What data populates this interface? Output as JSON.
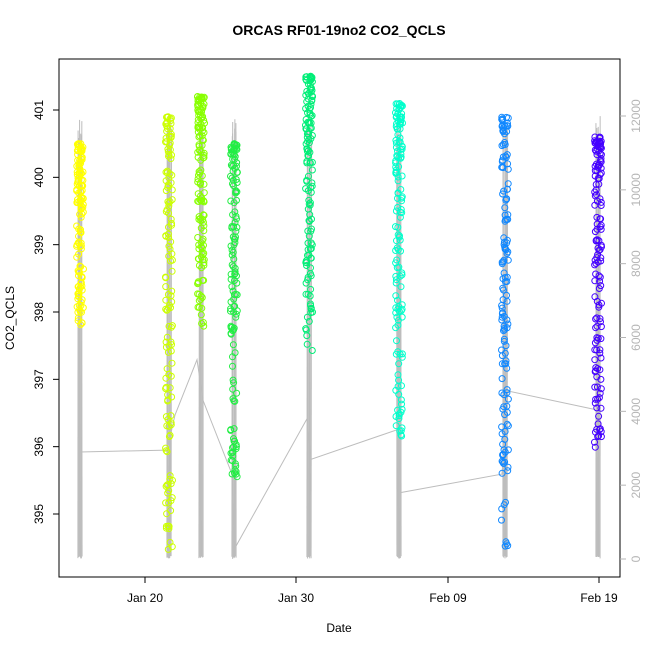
{
  "chart_data": {
    "type": "scatter",
    "title": "ORCAS RF01-19no2 CO2_QCLS",
    "xlabel": "Date",
    "ylabel": "CO2_QCLS",
    "x_ticks": [
      "Jan 20",
      "Jan 30",
      "Feb 09",
      "Feb 19"
    ],
    "y_ticks": [
      "395",
      "396",
      "397",
      "398",
      "399",
      "400",
      "401"
    ],
    "y_right_ticks": [
      "0",
      "2000",
      "4000",
      "6000",
      "8000",
      "10000",
      "12000"
    ],
    "x_range_days_after_jan20": [
      -5.8,
      19.5
    ],
    "ylim": [
      394.1,
      401.6
    ],
    "y_right_lim": [
      -400,
      13200
    ],
    "grid": false,
    "colors": {
      "altitude_trace": "#bdbdbd",
      "axes": "#000000",
      "right_axis": "#b5b5b5"
    },
    "flights": [
      {
        "date": "Jan 15",
        "day": -4.3,
        "color": "#ffff00",
        "co2_min": 397.8,
        "co2_max": 400.5,
        "alt_min": 0,
        "alt_max": 12000
      },
      {
        "date": "Jan 21",
        "day": 1.6,
        "color": "#ccff00",
        "co2_min": 394.4,
        "co2_max": 400.9,
        "alt_min": 0,
        "alt_max": 12000
      },
      {
        "date": "Jan 23",
        "day": 3.7,
        "color": "#88ff00",
        "co2_min": 397.6,
        "co2_max": 401.2,
        "alt_min": 0,
        "alt_max": 12000
      },
      {
        "date": "Jan 25",
        "day": 5.8,
        "color": "#22ee44",
        "co2_min": 395.3,
        "co2_max": 400.5,
        "alt_min": 0,
        "alt_max": 12000
      },
      {
        "date": "Jan 31",
        "day": 10.9,
        "color": "#00ee77",
        "co2_min": 397.4,
        "co2_max": 401.5,
        "alt_min": 0,
        "alt_max": 12000
      },
      {
        "date": "Feb 06",
        "day": 16.9,
        "color": "#00ffcc",
        "co2_min": 396.0,
        "co2_max": 401.1,
        "alt_min": 0,
        "alt_max": 12000
      },
      {
        "date": "Feb 12",
        "day": 23.8,
        "color": "#1188ff",
        "co2_min": 394.5,
        "co2_max": 400.9,
        "alt_min": 0,
        "alt_max": 12000
      },
      {
        "date": "Feb 19",
        "day": 30.0,
        "color": "#4400ff",
        "co2_min": 395.9,
        "co2_max": 400.6,
        "alt_min": 0,
        "alt_max": 12000
      }
    ]
  }
}
